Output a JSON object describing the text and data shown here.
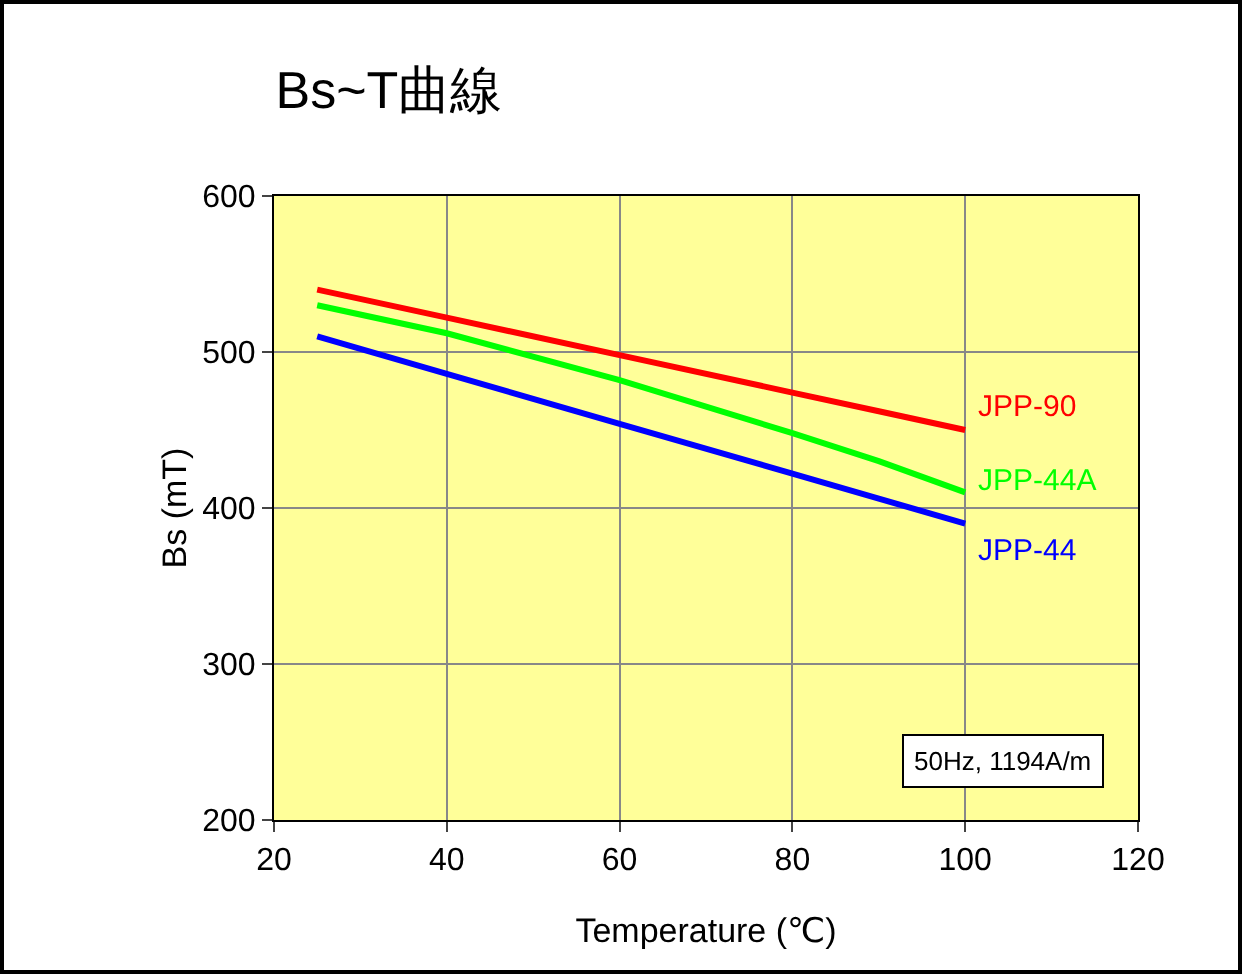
{
  "chart_data": {
    "type": "line",
    "title": "Bs~T曲線",
    "xlabel": "Temperature (℃)",
    "ylabel": "Bs (mT)",
    "x": [
      25,
      40,
      60,
      80,
      90,
      100
    ],
    "series": [
      {
        "name": "JPP-90",
        "color": "#ff0000",
        "values": [
          540,
          522,
          498,
          474,
          462,
          450
        ]
      },
      {
        "name": "JPP-44A",
        "color": "#00ff00",
        "values": [
          530,
          512,
          482,
          448,
          430,
          410
        ]
      },
      {
        "name": "JPP-44",
        "color": "#0000ff",
        "values": [
          510,
          486,
          454,
          422,
          406,
          390
        ]
      }
    ],
    "xlim": [
      20,
      120
    ],
    "xticks": [
      20,
      40,
      60,
      80,
      100,
      120
    ],
    "ylim": [
      200,
      600
    ],
    "yticks": [
      200,
      300,
      400,
      500,
      600
    ],
    "grid": true,
    "legend": false,
    "marker": "none",
    "line_style": "solid",
    "annotations": [
      "50Hz, 1194A/m"
    ]
  }
}
